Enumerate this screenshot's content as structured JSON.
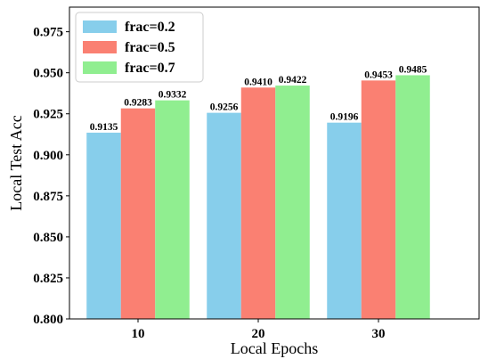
{
  "chart_data": {
    "type": "bar",
    "categories": [
      "10",
      "20",
      "30"
    ],
    "series": [
      {
        "name": "frac=0.2",
        "color": "#87CEEB",
        "values": [
          0.9135,
          0.9256,
          0.9196
        ],
        "labels": [
          "0.9135",
          "0.9256",
          "0.9196"
        ]
      },
      {
        "name": "frac=0.5",
        "color": "#FA8072",
        "values": [
          0.9283,
          0.941,
          0.9453
        ],
        "labels": [
          "0.9283",
          "0.9410",
          "0.9453"
        ]
      },
      {
        "name": "frac=0.7",
        "color": "#90EE90",
        "values": [
          0.9332,
          0.9422,
          0.9485
        ],
        "labels": [
          "0.9332",
          "0.9422",
          "0.9485"
        ]
      }
    ],
    "xlabel": "Local Epochs",
    "ylabel": "Local Test Acc",
    "ylim": [
      0.8,
      0.99
    ],
    "yticks": [
      "0.800",
      "0.825",
      "0.850",
      "0.875",
      "0.900",
      "0.925",
      "0.950",
      "0.975"
    ],
    "grid": false,
    "legend_position": "top-left"
  }
}
